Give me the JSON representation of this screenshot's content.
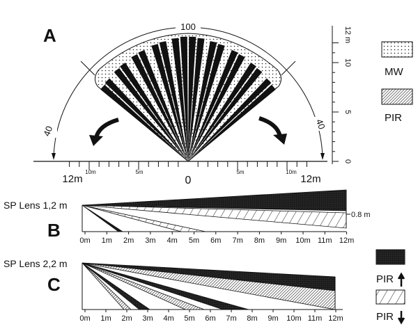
{
  "panel_a": {
    "label": "A",
    "arc_top_label": "100",
    "arc_left_label": "40",
    "arc_right_label": "40",
    "bottom_left_outer": "12m",
    "bottom_left_inner": "10m",
    "bottom_left_mid": "5m",
    "bottom_center": "0",
    "bottom_right_mid": "5m",
    "bottom_right_inner": "10m",
    "bottom_right_outer": "12m",
    "vert_ticks": [
      "0",
      "5",
      "10",
      "12 m"
    ],
    "legend": [
      {
        "label": "MW",
        "pattern": "dots"
      },
      {
        "label": "PIR",
        "pattern": "hatch-dark"
      }
    ]
  },
  "panel_b": {
    "label": "B",
    "lens_label": "SP Lens 1,2 m",
    "height_label": "0.8 m",
    "x_ticks": [
      "0m",
      "1m",
      "2m",
      "3m",
      "4m",
      "5m",
      "6m",
      "7m",
      "8m",
      "9m",
      "10m",
      "11m",
      "12m"
    ]
  },
  "panel_c": {
    "label": "C",
    "lens_label": "SP Lens 2,2 m",
    "x_ticks": [
      "0m",
      "1m",
      "2m",
      "3m",
      "4m",
      "5m",
      "6m",
      "7m",
      "8m",
      "9m",
      "10m",
      "11m",
      "12m"
    ],
    "legend": [
      {
        "label": "PIR",
        "arrow": "up"
      },
      {
        "label": "PIR",
        "arrow": "down"
      }
    ]
  },
  "colors": {
    "ink": "#111111",
    "background": "#ffffff"
  }
}
